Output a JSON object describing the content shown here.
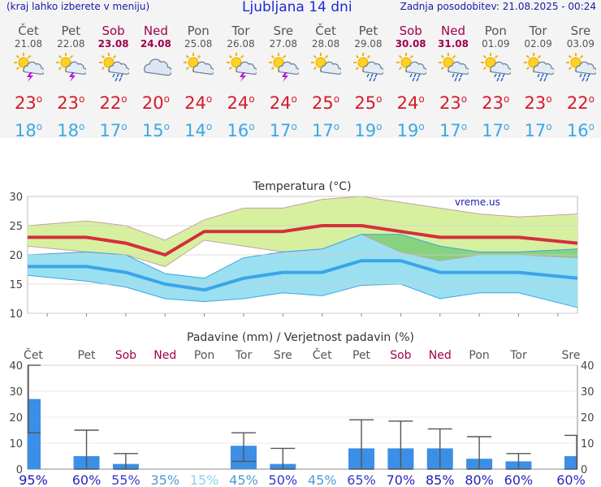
{
  "header": {
    "menu_hint": "(kraj lahko izberete v meniju)",
    "title": "Ljubljana 14 dni",
    "last_update": "Zadnja posodobitev: 21.08.2025 - 00:24"
  },
  "days": [
    {
      "name": "Čet",
      "date": "21.08",
      "weekend": false,
      "icon": "sun-storm-icon",
      "max": "23",
      "min": "18"
    },
    {
      "name": "Pet",
      "date": "22.08",
      "weekend": false,
      "icon": "sun-storm-icon",
      "max": "23",
      "min": "18"
    },
    {
      "name": "Sob",
      "date": "23.08",
      "weekend": true,
      "icon": "sun-rain-icon",
      "max": "22",
      "min": "17"
    },
    {
      "name": "Ned",
      "date": "24.08",
      "weekend": true,
      "icon": "cloud-icon",
      "max": "20",
      "min": "15"
    },
    {
      "name": "Pon",
      "date": "25.08",
      "weekend": false,
      "icon": "sun-cloud-icon",
      "max": "24",
      "min": "14"
    },
    {
      "name": "Tor",
      "date": "26.08",
      "weekend": false,
      "icon": "sun-storm-icon",
      "max": "24",
      "min": "16"
    },
    {
      "name": "Sre",
      "date": "27.08",
      "weekend": false,
      "icon": "sun-storm-icon",
      "max": "24",
      "min": "17"
    },
    {
      "name": "Čet",
      "date": "28.08",
      "weekend": false,
      "icon": "sun-cloud-icon",
      "max": "25",
      "min": "17"
    },
    {
      "name": "Pet",
      "date": "29.08",
      "weekend": false,
      "icon": "sun-rain-icon",
      "max": "25",
      "min": "19"
    },
    {
      "name": "Sob",
      "date": "30.08",
      "weekend": true,
      "icon": "sun-rain-icon",
      "max": "24",
      "min": "19"
    },
    {
      "name": "Ned",
      "date": "31.08",
      "weekend": true,
      "icon": "sun-rain-icon",
      "max": "23",
      "min": "17"
    },
    {
      "name": "Pon",
      "date": "01.09",
      "weekend": false,
      "icon": "sun-rain-icon",
      "max": "23",
      "min": "17"
    },
    {
      "name": "Tor",
      "date": "02.09",
      "weekend": false,
      "icon": "sun-rain-icon",
      "max": "23",
      "min": "17"
    },
    {
      "name": "Sre",
      "date": "03.09",
      "weekend": false,
      "icon": "sun-rain-icon",
      "max": "22",
      "min": "16"
    }
  ],
  "chart_data": [
    {
      "type": "line",
      "title": "Temperatura (°C)",
      "watermark": "vreme.us",
      "ylim": [
        10,
        30
      ],
      "yticks": [
        10,
        15,
        20,
        25,
        30
      ],
      "series": [
        {
          "name": "max",
          "values": [
            23,
            23,
            22,
            20,
            24,
            24,
            24,
            25,
            25,
            24,
            23,
            23,
            23,
            22
          ],
          "color": "#d4303c"
        },
        {
          "name": "min",
          "values": [
            18,
            18,
            17,
            15,
            14,
            16,
            17,
            17,
            19,
            19,
            17,
            17,
            17,
            16
          ],
          "color": "#3aa5e8"
        }
      ],
      "max_band_upper": [
        25,
        25.8,
        25,
        22.5,
        26,
        28,
        28,
        29.5,
        30,
        29,
        28,
        27,
        26.5,
        27
      ],
      "max_band_lower": [
        21.5,
        20.5,
        20,
        18,
        22.5,
        21.5,
        20.5,
        21,
        23.5,
        20.5,
        19,
        20,
        20,
        19.5
      ],
      "min_band_upper": [
        20,
        20.5,
        20,
        16.8,
        16,
        19.5,
        20.5,
        21,
        23.5,
        23.5,
        21.5,
        20.5,
        20.5,
        21
      ],
      "min_band_lower": [
        16.5,
        15.5,
        14.5,
        12.5,
        12,
        12.5,
        13.5,
        13,
        14.8,
        15,
        12.5,
        13.5,
        13.5,
        11
      ],
      "colors": {
        "max_band": "#d7f0a0",
        "min_band": "#9be0f0",
        "overlap": "#86d27f"
      }
    },
    {
      "type": "bar",
      "title": "Padavine (mm) / Verjetnost padavin (%)",
      "categories": [
        "Čet",
        "Pet",
        "Sob",
        "Ned",
        "Pon",
        "Tor",
        "Sre",
        "Čet",
        "Pet",
        "Sob",
        "Ned",
        "Pon",
        "Tor",
        "Sre"
      ],
      "weekend": [
        false,
        false,
        true,
        true,
        false,
        false,
        false,
        false,
        false,
        true,
        true,
        false,
        false,
        false
      ],
      "ylim": [
        0,
        40
      ],
      "yticks": [
        0,
        10,
        20,
        30,
        40
      ],
      "values": [
        27,
        5,
        2,
        0,
        0,
        9,
        2,
        0,
        8,
        8,
        8,
        4,
        3,
        5
      ],
      "err_low": [
        14,
        0,
        0,
        0,
        0,
        3,
        0,
        0,
        0,
        0,
        0,
        0,
        0,
        0
      ],
      "err_high": [
        40,
        15,
        6,
        0,
        0,
        14,
        8,
        0,
        19,
        18.5,
        15.5,
        12.5,
        6,
        13
      ],
      "probability": [
        "95%",
        "60%",
        "55%",
        "35%",
        "15%",
        "45%",
        "50%",
        "45%",
        "65%",
        "70%",
        "85%",
        "80%",
        "60%",
        "60%"
      ],
      "prob_colors": [
        "#1a1ab4",
        "#2828c0",
        "#3a3ac8",
        "#4c9bd6",
        "#8ad2ee",
        "#4c9bd6",
        "#2f3cc4",
        "#4c9bd6",
        "#2f3cc4",
        "#2828c0",
        "#1a1ab4",
        "#1f1fba",
        "#2828c0",
        "#2828c0"
      ],
      "bar_color": "#3b8fe6"
    }
  ]
}
